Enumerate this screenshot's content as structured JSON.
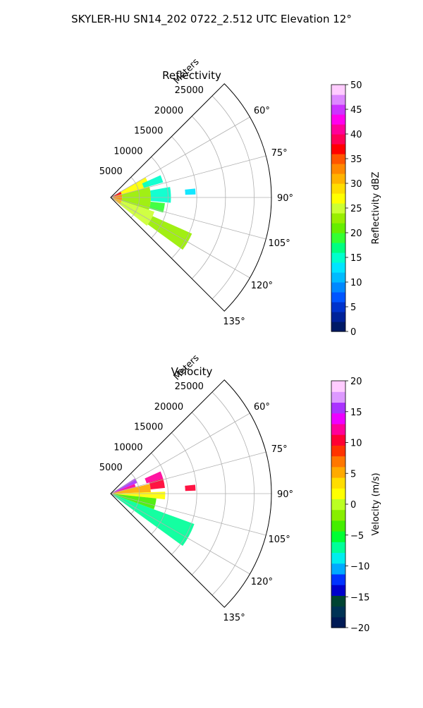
{
  "figure": {
    "suptitle": "SKYLER-HU  SN14_202  0722_2.512 UTC Elevation 12°"
  },
  "chart_data": [
    {
      "type": "polar-ppi",
      "title": "Reflectivity",
      "radial_label": "Meters",
      "radial_ticks": [
        5000,
        10000,
        15000,
        20000,
        25000
      ],
      "radial_tick_labels": [
        "5000",
        "10000",
        "15000",
        "20000",
        "25000"
      ],
      "rmax": 28000,
      "theta_range_deg": [
        45,
        135
      ],
      "theta_ticks": [
        60,
        75,
        90,
        105,
        120,
        135
      ],
      "theta_tick_labels": [
        "60°",
        "75°",
        "90°",
        "105°",
        "120°",
        "135°"
      ],
      "grid": true,
      "colorbar": {
        "label": "Reflectivity dBZ",
        "range": [
          0,
          50
        ],
        "ticks": [
          0,
          5,
          10,
          15,
          20,
          25,
          30,
          35,
          40,
          45,
          50
        ],
        "tick_labels": [
          "0",
          "5",
          "10",
          "15",
          "20",
          "25",
          "30",
          "35",
          "40",
          "45",
          "50"
        ],
        "colors": [
          "#001a66",
          "#002299",
          "#0033cc",
          "#0055ff",
          "#0088ff",
          "#00bbff",
          "#00e5ff",
          "#00ffcc",
          "#00ff80",
          "#33ff33",
          "#66ee00",
          "#99ee00",
          "#ccff33",
          "#ffff00",
          "#ffdd00",
          "#ffb300",
          "#ff8800",
          "#ff5500",
          "#ff0000",
          "#ff0055",
          "#ff0099",
          "#ff00ee",
          "#cc33ff",
          "#dd88ff",
          "#ffccff"
        ]
      },
      "echo_regions": [
        {
          "az": [
            58,
            72
          ],
          "range": [
            0,
            2000
          ],
          "value": 36
        },
        {
          "az": [
            72,
            108
          ],
          "range": [
            0,
            2000
          ],
          "value": 33
        },
        {
          "az": [
            108,
            126
          ],
          "range": [
            0,
            2000
          ],
          "value": 31
        },
        {
          "az": [
            60,
            75
          ],
          "range": [
            2000,
            7000
          ],
          "value": 27
        },
        {
          "az": [
            75,
            90
          ],
          "range": [
            2000,
            7000
          ],
          "value": 23
        },
        {
          "az": [
            90,
            108
          ],
          "range": [
            2000,
            7000
          ],
          "value": 22
        },
        {
          "az": [
            108,
            128
          ],
          "range": [
            2000,
            8000
          ],
          "value": 24
        },
        {
          "az": [
            66,
            74
          ],
          "range": [
            6000,
            9500
          ],
          "value": 15
        },
        {
          "az": [
            80,
            95
          ],
          "range": [
            7000,
            10500
          ],
          "value": 14
        },
        {
          "az": [
            96,
            106
          ],
          "range": [
            7000,
            9500
          ],
          "value": 18
        },
        {
          "az": [
            114,
            126
          ],
          "range": [
            8000,
            15500
          ],
          "value": 22
        },
        {
          "az": [
            84,
            88
          ],
          "range": [
            13000,
            14800
          ],
          "value": 12
        }
      ]
    },
    {
      "type": "polar-ppi",
      "title": "Velocity",
      "radial_label": "Meters",
      "radial_ticks": [
        5000,
        10000,
        15000,
        20000,
        25000
      ],
      "radial_tick_labels": [
        "5000",
        "10000",
        "15000",
        "20000",
        "25000"
      ],
      "rmax": 28000,
      "theta_range_deg": [
        45,
        135
      ],
      "theta_ticks": [
        60,
        75,
        90,
        105,
        120,
        135
      ],
      "theta_tick_labels": [
        "60°",
        "75°",
        "90°",
        "105°",
        "120°",
        "135°"
      ],
      "grid": true,
      "colorbar": {
        "label": "Velocity (m/s)",
        "range": [
          -20,
          20
        ],
        "ticks": [
          -20,
          -15,
          -10,
          -5,
          0,
          5,
          10,
          15,
          20
        ],
        "tick_labels": [
          "−20",
          "−15",
          "−10",
          "−5",
          "0",
          "5",
          "10",
          "15",
          "20"
        ],
        "colors": [
          "#001a55",
          "#003355",
          "#004433",
          "#0000cc",
          "#0033ff",
          "#00aaff",
          "#00eeee",
          "#00ff99",
          "#00ff33",
          "#44ee00",
          "#88ee00",
          "#bbff22",
          "#ffff00",
          "#ffdd00",
          "#ffaa00",
          "#ff7700",
          "#ff3300",
          "#ff0033",
          "#ff0099",
          "#ee00ff",
          "#aa33ff",
          "#dd99ff",
          "#ffccff"
        ]
      },
      "echo_regions": [
        {
          "az": [
            58,
            68
          ],
          "range": [
            0,
            5000
          ],
          "value": 15
        },
        {
          "az": [
            68,
            76
          ],
          "range": [
            0,
            4500
          ],
          "value": 12
        },
        {
          "az": [
            76,
            88
          ],
          "range": [
            0,
            7000
          ],
          "value": 5
        },
        {
          "az": [
            88,
            96
          ],
          "range": [
            0,
            9500
          ],
          "value": 1
        },
        {
          "az": [
            96,
            110
          ],
          "range": [
            0,
            8000
          ],
          "value": -4
        },
        {
          "az": [
            110,
            126
          ],
          "range": [
            0,
            15500
          ],
          "value": -7
        },
        {
          "az": [
            66,
            74
          ],
          "range": [
            6500,
            9500
          ],
          "value": 12
        },
        {
          "az": [
            74,
            84
          ],
          "range": [
            7000,
            9500
          ],
          "value": 10
        },
        {
          "az": [
            84,
            88
          ],
          "range": [
            13000,
            14800
          ],
          "value": 10
        }
      ]
    }
  ]
}
